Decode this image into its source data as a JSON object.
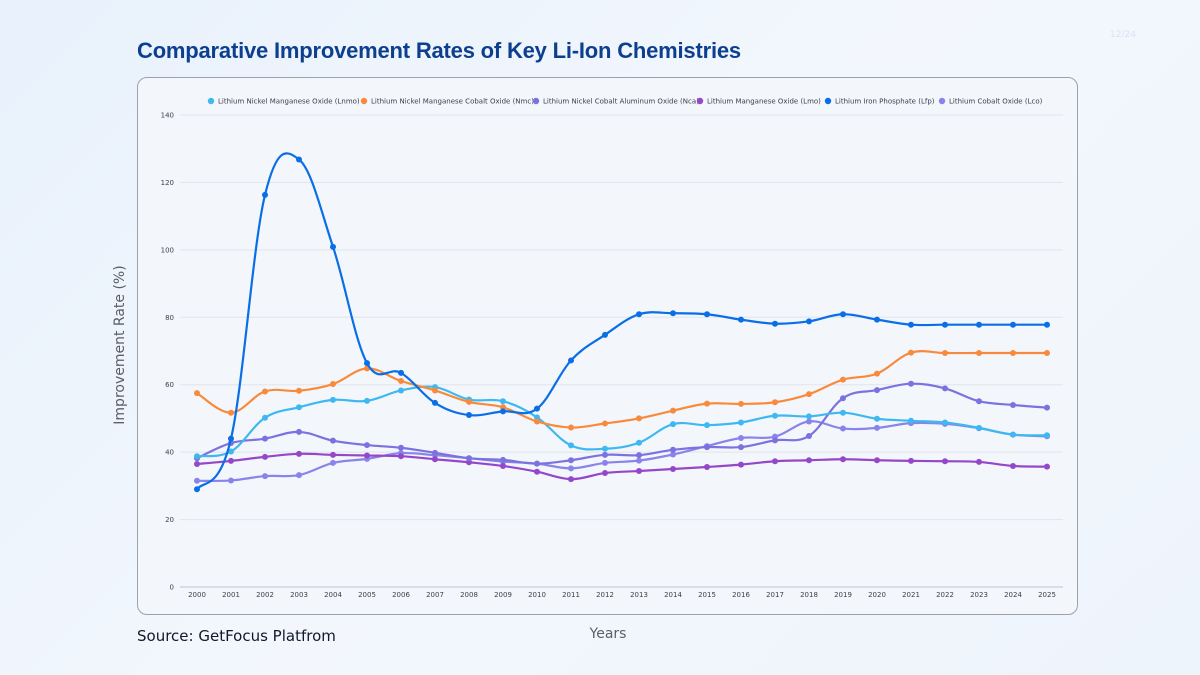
{
  "page": {
    "page_indicator": "12/24",
    "title": "Comparative Improvement Rates of Key Li-Ion Chemistries",
    "source": "Source: GetFocus Platfrom"
  },
  "chart_data": {
    "type": "line",
    "title": "Comparative Improvement Rates of Key Li-Ion Chemistries",
    "xlabel": "Years",
    "ylabel": "Improvement Rate (%)",
    "ylim": [
      0,
      140
    ],
    "yticks": [
      0,
      20,
      40,
      60,
      80,
      100,
      120,
      140
    ],
    "grid": true,
    "legend_position": "top",
    "x": [
      "2000",
      "2001",
      "2002",
      "2003",
      "2004",
      "2005",
      "2006",
      "2007",
      "2008",
      "2009",
      "2010",
      "2011",
      "2012",
      "2013",
      "2014",
      "2015",
      "2016",
      "2017",
      "2018",
      "2019",
      "2020",
      "2021",
      "2022",
      "2023",
      "2024",
      "2025"
    ],
    "series": [
      {
        "name": "Lithium Nickel Manganese Oxide (Lnmo)",
        "color": "#3fb8f0",
        "values": [
          38.8,
          40.2,
          50.2,
          53.3,
          55.5,
          55.2,
          58.3,
          59.3,
          55.6,
          55.1,
          50.3,
          42.0,
          41.0,
          42.8,
          48.3,
          48.0,
          48.8,
          50.8,
          50.6,
          51.7,
          49.9,
          49.3,
          48.8,
          47.2,
          45.2,
          45.0
        ]
      },
      {
        "name": "Lithium Nickel Manganese Cobalt Oxide (Nmc)",
        "color": "#f98a3b",
        "values": [
          57.5,
          51.7,
          58.0,
          58.2,
          60.2,
          64.8,
          61.1,
          58.3,
          54.9,
          53.3,
          49.1,
          47.3,
          48.5,
          50.0,
          52.3,
          54.4,
          54.3,
          54.8,
          57.2,
          61.5,
          63.3,
          69.5,
          69.4,
          69.4,
          69.4,
          69.4
        ]
      },
      {
        "name": "Lithium Nickel Cobalt Aluminum Oxide (Nca)",
        "color": "#7b72e0",
        "values": [
          38.2,
          42.7,
          44.0,
          46.0,
          43.4,
          42.1,
          41.3,
          39.8,
          38.2,
          37.7,
          36.6,
          37.6,
          39.2,
          39.1,
          40.7,
          41.5,
          41.5,
          43.5,
          44.8,
          56.0,
          58.4,
          60.3,
          58.9,
          55.1,
          54.0,
          53.2
        ]
      },
      {
        "name": "Lithium Manganese Oxide (Lmo)",
        "color": "#9447c9",
        "values": [
          36.5,
          37.4,
          38.6,
          39.5,
          39.2,
          39.0,
          38.8,
          37.9,
          37.0,
          35.9,
          34.2,
          32.0,
          33.8,
          34.4,
          35.0,
          35.6,
          36.3,
          37.3,
          37.6,
          37.9,
          37.6,
          37.4,
          37.3,
          37.1,
          35.9,
          35.7
        ]
      },
      {
        "name": "Lithium Iron Phosphate (Lfp)",
        "color": "#0a6ee6",
        "values": [
          29.0,
          44.0,
          116.3,
          126.8,
          100.9,
          66.4,
          63.5,
          54.6,
          51.0,
          52.1,
          52.9,
          67.2,
          74.8,
          80.9,
          81.2,
          80.9,
          79.3,
          78.1,
          78.8,
          80.9,
          79.3,
          77.8,
          77.8,
          77.8,
          77.8,
          77.8
        ]
      },
      {
        "name": "Lithium Cobalt Oxide (Lco)",
        "color": "#8a84ea",
        "values": [
          31.5,
          31.6,
          32.9,
          33.2,
          36.8,
          38.0,
          39.7,
          39.1,
          38.2,
          37.2,
          36.6,
          35.2,
          36.8,
          37.5,
          39.3,
          41.8,
          44.2,
          44.6,
          49.1,
          47.0,
          47.2,
          48.6,
          48.4,
          47.1,
          45.2,
          44.7
        ]
      }
    ]
  }
}
